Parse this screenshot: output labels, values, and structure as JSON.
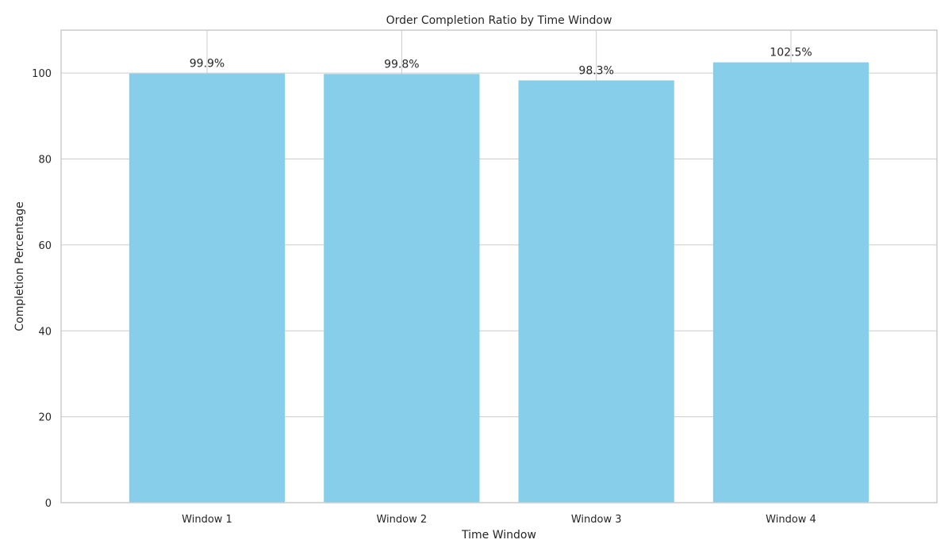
{
  "chart_data": {
    "type": "bar",
    "title": "Order Completion Ratio by Time Window",
    "xlabel": "Time Window",
    "ylabel": "Completion Percentage",
    "categories": [
      "Window 1",
      "Window 2",
      "Window 3",
      "Window 4"
    ],
    "values": [
      99.9,
      99.8,
      98.3,
      102.5
    ],
    "data_labels": [
      "99.9%",
      "99.8%",
      "98.3%",
      "102.5%"
    ],
    "ylim": [
      0,
      110
    ],
    "yticks": [
      0,
      20,
      40,
      60,
      80,
      100
    ],
    "grid": true,
    "legend": "none",
    "colors": {
      "bar": "#87ceeb",
      "grid": "#cccccc",
      "frame": "#cccccc",
      "text": "#262626",
      "background": "#ffffff"
    }
  }
}
